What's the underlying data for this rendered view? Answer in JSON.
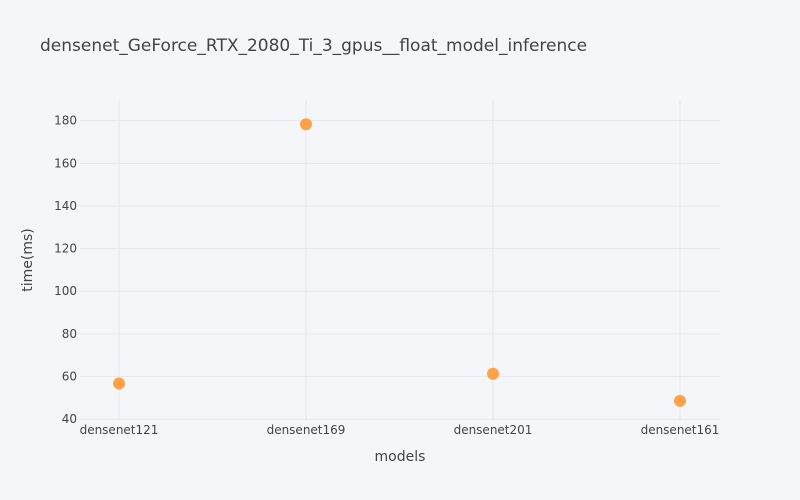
{
  "chart_data": {
    "type": "scatter",
    "title": "densenet_GeForce_RTX_2080_Ti_3_gpus__float_model_inference",
    "xlabel": "models",
    "ylabel": "time(ms)",
    "categories": [
      "densenet121",
      "densenet169",
      "densenet201",
      "densenet161"
    ],
    "values": [
      56.7,
      178.3,
      61.3,
      48.6
    ],
    "ylim": [
      39.6,
      189.7
    ],
    "yticks": [
      40,
      60,
      80,
      100,
      120,
      140,
      160,
      180
    ],
    "grid": true,
    "marker_color": "#ff9933"
  }
}
